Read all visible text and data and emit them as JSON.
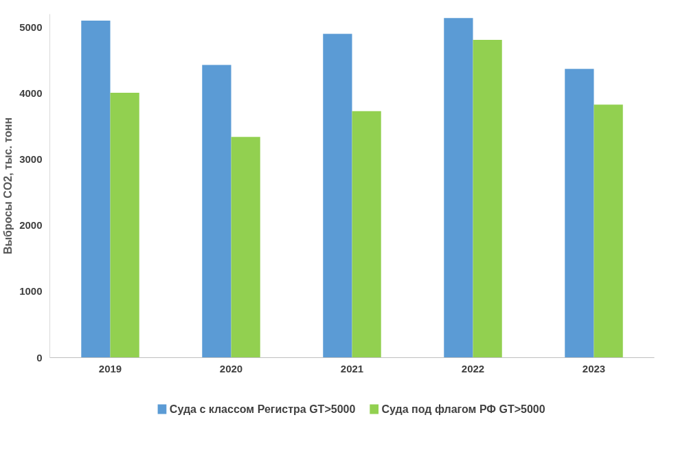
{
  "chart_data": {
    "type": "bar",
    "ylabel": "Выбросы CO2, тыс. тонн",
    "categories": [
      "2019",
      "2020",
      "2021",
      "2022",
      "2023"
    ],
    "series": [
      {
        "name": "Суда с классом Регистра GT>5000",
        "color": "#5b9bd5",
        "values": [
          5100,
          4430,
          4900,
          5140,
          4370
        ]
      },
      {
        "name": "Суда под флагом РФ GT>5000",
        "color": "#92d050",
        "values": [
          4010,
          3340,
          3730,
          4810,
          3830
        ]
      }
    ],
    "ylim": [
      0,
      5200
    ],
    "yticks": [
      0,
      1000,
      2000,
      3000,
      4000,
      5000
    ],
    "grid": false,
    "legend": "bottom"
  }
}
